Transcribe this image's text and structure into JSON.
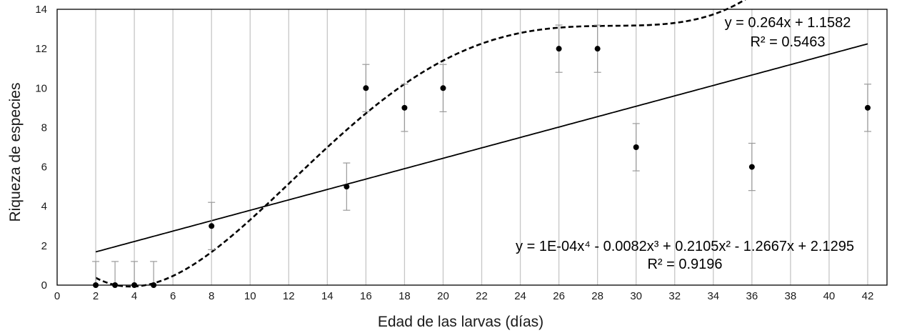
{
  "chart_data": {
    "type": "scatter",
    "xlabel": "Edad de las larvas (días)",
    "ylabel": "Riqueza de especies",
    "xlim": [
      0,
      43
    ],
    "ylim": [
      0,
      14
    ],
    "xticks": [
      0,
      2,
      4,
      6,
      8,
      10,
      12,
      14,
      16,
      18,
      20,
      22,
      24,
      26,
      28,
      30,
      32,
      34,
      36,
      38,
      40,
      42
    ],
    "yticks": [
      0,
      2,
      4,
      6,
      8,
      10,
      12,
      14
    ],
    "vertical_grid": true,
    "points": [
      {
        "x": 2,
        "y": 0,
        "err": 1.2
      },
      {
        "x": 3,
        "y": 0,
        "err": 1.2
      },
      {
        "x": 4,
        "y": 0,
        "err": 1.2
      },
      {
        "x": 5,
        "y": 0,
        "err": 1.2
      },
      {
        "x": 8,
        "y": 3,
        "err": 1.2
      },
      {
        "x": 15,
        "y": 5,
        "err": 1.2
      },
      {
        "x": 16,
        "y": 10,
        "err": 1.2
      },
      {
        "x": 18,
        "y": 9,
        "err": 1.2
      },
      {
        "x": 20,
        "y": 10,
        "err": 1.2
      },
      {
        "x": 26,
        "y": 12,
        "err": 1.2
      },
      {
        "x": 28,
        "y": 12,
        "err": 1.2
      },
      {
        "x": 30,
        "y": 7,
        "err": 1.2
      },
      {
        "x": 36,
        "y": 6,
        "err": 1.2
      },
      {
        "x": 42,
        "y": 9,
        "err": 1.2
      }
    ],
    "trendlines": [
      {
        "kind": "linear",
        "style": "solid",
        "coefficients": [
          1.1582,
          0.264
        ],
        "x_range": [
          2,
          42
        ],
        "equation_label": "y = 0.264x + 1.1582",
        "r2_label": "R² = 0.5463"
      },
      {
        "kind": "polynomial",
        "style": "dashed",
        "coefficients": [
          2.1295,
          -1.2667,
          0.2105,
          -0.0082,
          0.0001
        ],
        "x_range": [
          2,
          42
        ],
        "equation_label": "y = 1E-04x⁴ - 0.0082x³ + 0.2105x² - 1.2667x + 2.1295",
        "r2_label": "R² = 0.9196"
      }
    ]
  }
}
